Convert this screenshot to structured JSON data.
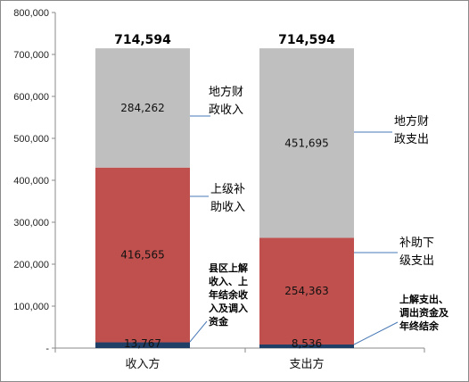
{
  "chart_data": {
    "type": "bar",
    "stacked": true,
    "ylim": [
      0,
      800000
    ],
    "yticks": [
      0,
      100000,
      200000,
      300000,
      400000,
      500000,
      600000,
      700000,
      800000
    ],
    "ytick_labels": [
      "-",
      "100,000",
      "200,000",
      "300,000",
      "400,000",
      "500,000",
      "600,000",
      "700,000",
      "800,000"
    ],
    "categories": [
      "收入方",
      "支出方"
    ],
    "totals": [
      714594,
      714594
    ],
    "total_labels": [
      "714,594",
      "714,594"
    ],
    "bars": [
      {
        "category": "收入方",
        "segments": [
          {
            "value": 13767,
            "label": "13,767",
            "color": "#1F3F66",
            "annotation": [
              "县区上解",
              "收入、上",
              "年结余收",
              "入及调入",
              "资金"
            ]
          },
          {
            "value": 416565,
            "label": "416,565",
            "color": "#C0504D",
            "annotation": [
              "上级补",
              "助收入"
            ]
          },
          {
            "value": 284262,
            "label": "284,262",
            "color": "#BFBFBF",
            "annotation": [
              "地方财",
              "政收入"
            ]
          }
        ]
      },
      {
        "category": "支出方",
        "segments": [
          {
            "value": 8536,
            "label": "8,536",
            "color": "#1F3F66",
            "annotation": [
              "上解支出、",
              "调出资金及",
              "年终结余"
            ]
          },
          {
            "value": 254363,
            "label": "254,363",
            "color": "#C0504D",
            "annotation": [
              "补助下",
              "级支出"
            ]
          },
          {
            "value": 451695,
            "label": "451,695",
            "color": "#BFBFBF",
            "annotation": [
              "地方财",
              "政支出"
            ]
          }
        ]
      }
    ],
    "grid": false,
    "legend": "none"
  }
}
